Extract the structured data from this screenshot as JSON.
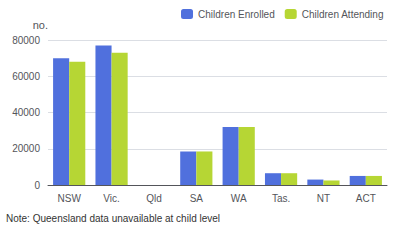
{
  "chart_data": {
    "type": "bar",
    "categories": [
      "NSW",
      "Vic.",
      "Qld",
      "SA",
      "WA",
      "Tas.",
      "NT",
      "ACT"
    ],
    "series": [
      {
        "name": "Children Enrolled",
        "values": [
          70000,
          77000,
          0,
          18500,
          32000,
          6500,
          3000,
          5000
        ]
      },
      {
        "name": "Children Attending",
        "values": [
          68000,
          73000,
          0,
          18500,
          32000,
          6500,
          2500,
          5000
        ]
      }
    ],
    "y_label": "no.",
    "annotations": [
      "Note: Queensland data unavailable at child level"
    ],
    "ylim": [
      0,
      80000
    ],
    "yticks": [
      0,
      20000,
      40000,
      60000,
      80000
    ],
    "grid": true,
    "legend": "upper right"
  }
}
